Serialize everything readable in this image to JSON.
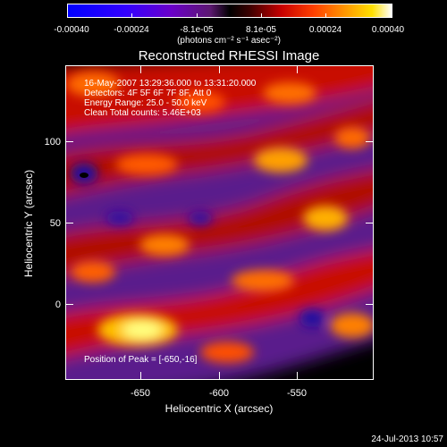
{
  "colorbar": {
    "ticks": [
      "-0.00040",
      "-0.00024",
      "-8.1e-05",
      "8.1e-05",
      "0.00024",
      "0.00040"
    ],
    "units": "(photons cm⁻² s⁻¹ asec⁻²)",
    "colors": [
      "#0000ff",
      "#6a00c8",
      "#000000",
      "#c80000",
      "#ff9a00",
      "#ffffff"
    ]
  },
  "title": "Reconstructed RHESSI Image",
  "annotations": {
    "line1": "16-May-2007 13:29:36.000 to 13:31:20.000",
    "line2": "Detectors: 4F 5F 6F 7F 8F, Att 0",
    "line3": "Energy Range: 25.0 - 50.0 keV",
    "line4": "Clean    Total counts: 5.46E+03",
    "peak": "Position of Peak = [-650,-16]"
  },
  "axes": {
    "xlabel": "Heliocentric X (arcsec)",
    "ylabel": "Heliocentric Y (arcsec)",
    "xticks": [
      "-650",
      "-600",
      "-550"
    ],
    "yticks": [
      "100",
      "50",
      "0"
    ]
  },
  "timestamp": "24-Jul-2013 10:57"
}
